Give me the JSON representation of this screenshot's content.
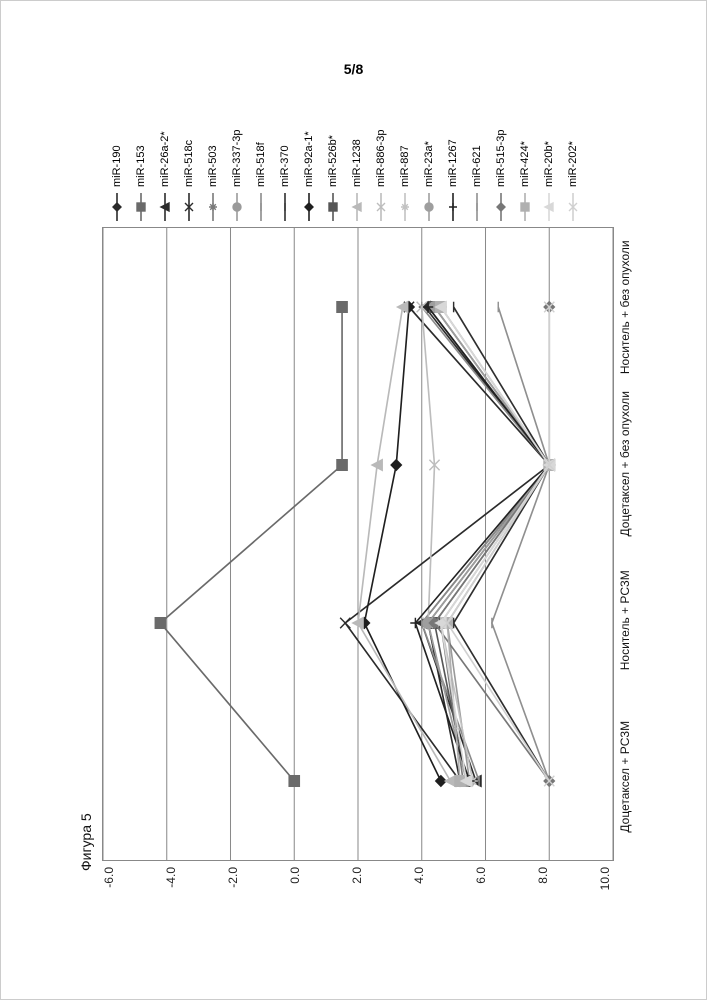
{
  "page_number": "5/8",
  "figure_title": "Фигура 5",
  "chart": {
    "type": "line",
    "ylim": [
      -6,
      10
    ],
    "yticks": [
      -6,
      -4,
      -2,
      0,
      2,
      4,
      6,
      8,
      10
    ],
    "ytick_labels": [
      "-6.0",
      "-4.0",
      "-2.0",
      "0.0",
      "2.0",
      "4.0",
      "6.0",
      "8.0",
      "10.0"
    ],
    "background_color": "#ffffff",
    "grid_color": "#8a8a8a",
    "axis_color": "#555555",
    "categories": [
      "Доцетаксел + PC3M",
      "Носитель + PC3M",
      "Доцетаксел + без опухоли",
      "Носитель + без опухоли"
    ],
    "label_fontsize": 12,
    "line_width": 1.6,
    "marker_size": 5,
    "series": [
      {
        "name": "miR-190",
        "color": "#2b2b2b",
        "marker": "diamond",
        "values": [
          5.2,
          4.2,
          8.0,
          4.2
        ]
      },
      {
        "name": "miR-153",
        "color": "#6a6a6a",
        "marker": "square",
        "values": [
          0.0,
          -4.2,
          1.5,
          1.5
        ]
      },
      {
        "name": "miR-26a-2*",
        "color": "#2b2b2b",
        "marker": "triangle",
        "values": [
          5.7,
          4.0,
          8.0,
          4.1
        ]
      },
      {
        "name": "miR-518c",
        "color": "#2b2b2b",
        "marker": "x",
        "values": [
          5.2,
          1.6,
          8.0,
          3.6
        ]
      },
      {
        "name": "miR-503",
        "color": "#7a7a7a",
        "marker": "star",
        "values": [
          5.3,
          4.6,
          8.0,
          4.4
        ]
      },
      {
        "name": "miR-337-3p",
        "color": "#9a9a9a",
        "marker": "circle",
        "values": [
          5.5,
          4.8,
          8.0,
          4.6
        ]
      },
      {
        "name": "miR-518f",
        "color": "#8a8a8a",
        "marker": "dash",
        "values": [
          5.8,
          4.0,
          8.0,
          4.0
        ]
      },
      {
        "name": "miR-370",
        "color": "#2f2f2f",
        "marker": "dash",
        "values": [
          8.0,
          5.0,
          8.0,
          5.0
        ]
      },
      {
        "name": "miR-92a-1*",
        "color": "#1f1f1f",
        "marker": "diamond",
        "values": [
          4.6,
          2.2,
          3.2,
          3.6
        ]
      },
      {
        "name": "miR-526b*",
        "color": "#565656",
        "marker": "square",
        "values": [
          5.4,
          4.4,
          8.0,
          4.4
        ]
      },
      {
        "name": "miR-1238",
        "color": "#b9b9b9",
        "marker": "triangle",
        "values": [
          4.9,
          2.0,
          2.6,
          3.4
        ]
      },
      {
        "name": "miR-886-3p",
        "color": "#bdbdbd",
        "marker": "x",
        "values": [
          5.4,
          4.2,
          4.4,
          4.0
        ]
      },
      {
        "name": "miR-887",
        "color": "#c2c2c2",
        "marker": "star",
        "values": [
          5.6,
          4.6,
          8.0,
          4.6
        ]
      },
      {
        "name": "miR-23a*",
        "color": "#9e9e9e",
        "marker": "circle",
        "values": [
          5.4,
          4.2,
          8.0,
          4.4
        ]
      },
      {
        "name": "miR-1267",
        "color": "#222222",
        "marker": "plus",
        "values": [
          5.5,
          3.8,
          8.0,
          4.2
        ]
      },
      {
        "name": "miR-621",
        "color": "#8f8f8f",
        "marker": "dash",
        "values": [
          8.0,
          6.2,
          8.0,
          6.4
        ]
      },
      {
        "name": "miR-515-3p",
        "color": "#777777",
        "marker": "diamond",
        "values": [
          8.0,
          4.4,
          8.0,
          8.0
        ]
      },
      {
        "name": "miR-424*",
        "color": "#b0b0b0",
        "marker": "square",
        "values": [
          5.2,
          4.8,
          8.0,
          4.6
        ]
      },
      {
        "name": "miR-20b*",
        "color": "#d8d8d8",
        "marker": "triangle",
        "values": [
          5.4,
          4.6,
          8.0,
          4.6
        ]
      },
      {
        "name": "miR-202*",
        "color": "#d0d0d0",
        "marker": "x",
        "values": [
          8.0,
          4.8,
          8.0,
          8.0
        ]
      }
    ]
  }
}
